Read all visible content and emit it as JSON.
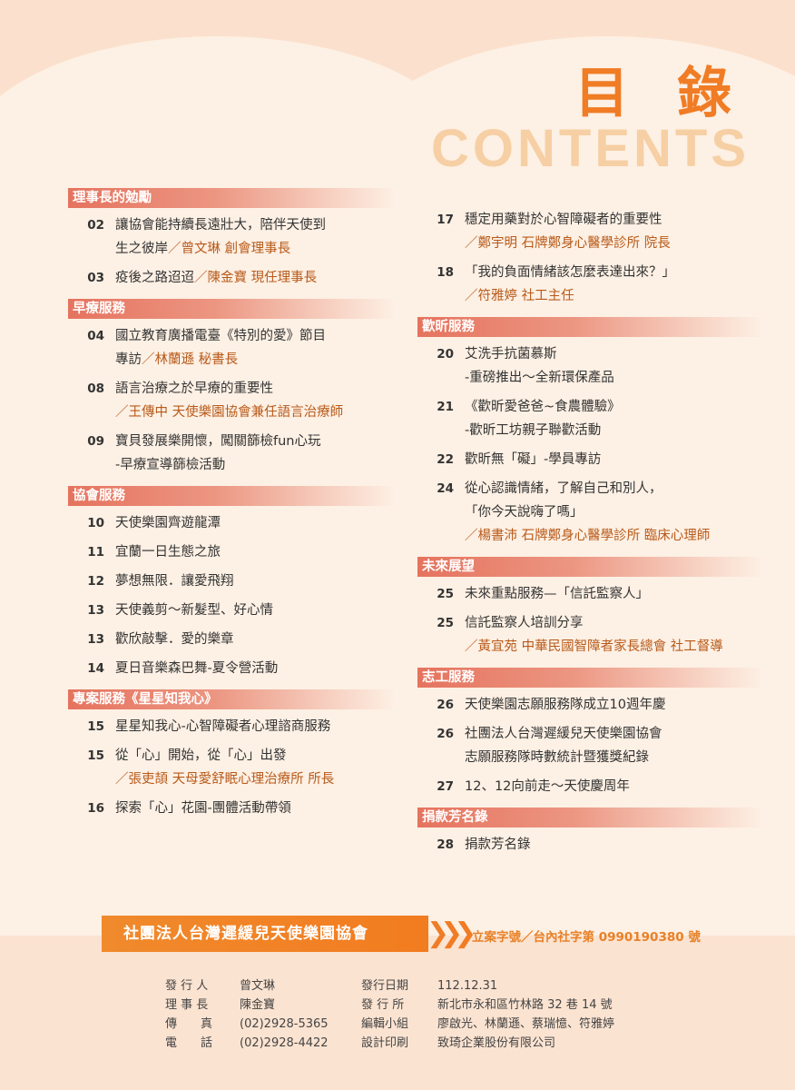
{
  "header": {
    "title_cn": "目 錄",
    "title_en": "CONTENTS"
  },
  "left": [
    {
      "head": "理事長的勉勵",
      "items": [
        {
          "num": "02",
          "lines": [
            "讓協會能持續長遠壯大，陪伴天使到",
            "生之彼岸"
          ],
          "author": "／曾文琳 創會理事長",
          "author_inline": true
        },
        {
          "num": "03",
          "lines": [
            "疫後之路迢迢"
          ],
          "author": "／陳金寶 現任理事長",
          "author_inline": true
        }
      ]
    },
    {
      "head": "早療服務",
      "items": [
        {
          "num": "04",
          "lines": [
            "國立教育廣播電臺《特別的愛》節目",
            "專訪"
          ],
          "author": "／林蘭遜 秘書長",
          "author_inline": true
        },
        {
          "num": "08",
          "lines": [
            "語言治療之於早療的重要性"
          ],
          "author": "／王傳中 天使樂園協會兼任語言治療師",
          "author_inline": false
        },
        {
          "num": "09",
          "lines": [
            "寶貝發展樂開懷，闖關篩檢fun心玩",
            "-早療宣導篩檢活動"
          ],
          "author": "",
          "author_inline": false
        }
      ]
    },
    {
      "head": "協會服務",
      "items": [
        {
          "num": "10",
          "lines": [
            "天使樂園齊遊龍潭"
          ],
          "author": "",
          "author_inline": false
        },
        {
          "num": "11",
          "lines": [
            "宜蘭一日生態之旅"
          ],
          "author": "",
          "author_inline": false
        },
        {
          "num": "12",
          "lines": [
            "夢想無限．讓愛飛翔"
          ],
          "author": "",
          "author_inline": false
        },
        {
          "num": "13",
          "lines": [
            "天使義剪～新髮型、好心情"
          ],
          "author": "",
          "author_inline": false
        },
        {
          "num": "13",
          "lines": [
            "歡欣敲擊．愛的樂章"
          ],
          "author": "",
          "author_inline": false
        },
        {
          "num": "14",
          "lines": [
            "夏日音樂森巴舞-夏令營活動"
          ],
          "author": "",
          "author_inline": false
        }
      ]
    },
    {
      "head": "專案服務《星星知我心》",
      "items": [
        {
          "num": "15",
          "lines": [
            "星星知我心-心智障礙者心理諮商服務"
          ],
          "author": "",
          "author_inline": false
        },
        {
          "num": "15",
          "lines": [
            "從「心」開始，從「心」出發"
          ],
          "author": "／張吏頡 天母愛舒眠心理治療所 所長",
          "author_inline": false
        },
        {
          "num": "16",
          "lines": [
            "探索「心」花園-團體活動帶領"
          ],
          "author": "",
          "author_inline": false
        }
      ]
    }
  ],
  "right": [
    {
      "head": "",
      "items": [
        {
          "num": "17",
          "lines": [
            "穩定用藥對於心智障礙者的重要性"
          ],
          "author": "／鄭宇明 石牌鄭身心醫學診所 院長",
          "author_inline": false
        },
        {
          "num": "18",
          "lines": [
            "「我的負面情緒該怎麼表達出來？」"
          ],
          "author": "／符雅婷 社工主任",
          "author_inline": false
        }
      ]
    },
    {
      "head": "歡昕服務",
      "items": [
        {
          "num": "20",
          "lines": [
            "艾洗手抗菌慕斯",
            "-重磅推出～全新環保產品"
          ],
          "author": "",
          "author_inline": false
        },
        {
          "num": "21",
          "lines": [
            "《歡昕愛爸爸~食農體驗》",
            "-歡昕工坊親子聯歡活動"
          ],
          "author": "",
          "author_inline": false
        },
        {
          "num": "22",
          "lines": [
            "歡昕無「礙」-學員專訪"
          ],
          "author": "",
          "author_inline": false
        },
        {
          "num": "24",
          "lines": [
            "從心認識情緒，了解自己和別人，",
            "「你今天說嗨了嗎」"
          ],
          "author": "／楊書沛 石牌鄭身心醫學診所 臨床心理師",
          "author_inline": false
        }
      ]
    },
    {
      "head": "未來展望",
      "items": [
        {
          "num": "25",
          "lines": [
            "未來重點服務—「信託監察人」"
          ],
          "author": "",
          "author_inline": false
        },
        {
          "num": "25",
          "lines": [
            "信託監察人培訓分享"
          ],
          "author": "／黃宜苑 中華民國智障者家長總會 社工督導",
          "author_inline": false
        }
      ]
    },
    {
      "head": "志工服務",
      "items": [
        {
          "num": "26",
          "lines": [
            "天使樂園志願服務隊成立10週年慶"
          ],
          "author": "",
          "author_inline": false
        },
        {
          "num": "26",
          "lines": [
            "社團法人台灣遲緩兒天使樂園協會",
            "志願服務隊時數統計暨獲獎紀錄"
          ],
          "author": "",
          "author_inline": false
        },
        {
          "num": "27",
          "lines": [
            "12、12向前走～天使慶周年"
          ],
          "author": "",
          "author_inline": false
        }
      ]
    },
    {
      "head": "捐款芳名錄",
      "items": [
        {
          "num": "28",
          "lines": [
            "捐款芳名錄"
          ],
          "author": "",
          "author_inline": false
        }
      ]
    }
  ],
  "footer": {
    "org": "社團法人台灣遲緩兒天使樂園協會",
    "reg": "立案字號／台內社字第 0990190380 號",
    "left_info": [
      {
        "k": "發 行 人",
        "v": "曾文琳"
      },
      {
        "k": "理 事 長",
        "v": "陳金寶"
      },
      {
        "k": "傳　　真",
        "v": "(02)2928-5365"
      },
      {
        "k": "電　　話",
        "v": "(02)2928-4422"
      }
    ],
    "right_info": [
      {
        "k": "發行日期",
        "v": "112.12.31"
      },
      {
        "k": "發 行 所",
        "v": "新北市永和區竹林路 32 巷 14 號"
      },
      {
        "k": "編輯小組",
        "v": "廖啟光、林蘭遜、蔡瑞憶、符雅婷"
      },
      {
        "k": "設計印刷",
        "v": "致琦企業股份有限公司"
      }
    ]
  }
}
